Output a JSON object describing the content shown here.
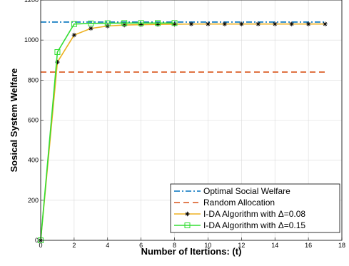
{
  "chart_data": {
    "type": "line",
    "title": "",
    "xlabel": "Number of Itertions: (t)",
    "ylabel": "Sosical System Welfare",
    "xlim": [
      0,
      18
    ],
    "ylim": [
      0,
      1200
    ],
    "xticks": [
      0,
      2,
      4,
      6,
      8,
      10,
      12,
      14,
      16,
      18
    ],
    "yticks": [
      0,
      200,
      400,
      600,
      800,
      1000,
      1200
    ],
    "grid": true,
    "legend_position": "bottom-right",
    "series": [
      {
        "name": "Optimal Social Welfare",
        "style": "dash-dot",
        "color": "#0072BD",
        "x": [
          0,
          17
        ],
        "y": [
          1090,
          1090
        ]
      },
      {
        "name": "Random Allocation",
        "style": "dashed",
        "color": "#D95319",
        "x": [
          0,
          17
        ],
        "y": [
          840,
          840
        ]
      },
      {
        "name": "I-DA Algorithm with Δ=0.08",
        "style": "line-asterisk",
        "color": "#EDB120",
        "marker_color": "#000000",
        "x": [
          0,
          1,
          2,
          3,
          4,
          5,
          6,
          7,
          8,
          9,
          10,
          11,
          12,
          13,
          14,
          15,
          16,
          17
        ],
        "y": [
          0,
          890,
          1025,
          1058,
          1070,
          1075,
          1077,
          1078,
          1079,
          1080,
          1080,
          1080,
          1080,
          1080,
          1080,
          1080,
          1080,
          1080
        ]
      },
      {
        "name": "I-DA Algorithm with Δ=0.15",
        "style": "line-square",
        "color": "#33DD33",
        "x": [
          0,
          1,
          2,
          3,
          4,
          5,
          6,
          7,
          8
        ],
        "y": [
          0,
          940,
          1080,
          1083,
          1084,
          1085,
          1085,
          1085,
          1085
        ]
      }
    ]
  }
}
